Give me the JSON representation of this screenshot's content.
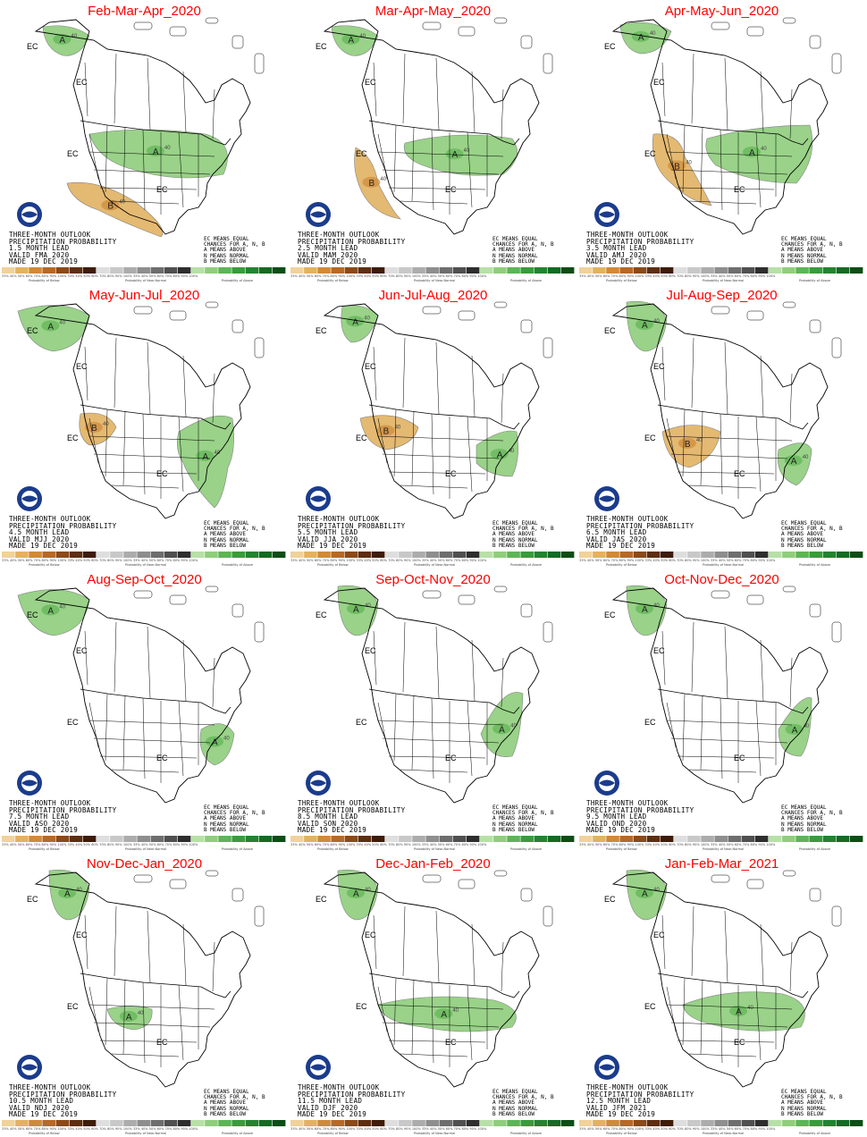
{
  "panels": [
    {
      "title": "Feb-Mar-Apr_2020",
      "lead": "1.5 MONTH LEAD",
      "valid": "VALID FMA 2020"
    },
    {
      "title": "Mar-Apr-May_2020",
      "lead": "2.5 MONTH LEAD",
      "valid": "VALID MAM 2020"
    },
    {
      "title": "Apr-May-Jun_2020",
      "lead": "3.5 MONTH LEAD",
      "valid": "VALID AMJ 2020"
    },
    {
      "title": "May-Jun-Jul_2020",
      "lead": "4.5 MONTH LEAD",
      "valid": "VALID MJJ 2020"
    },
    {
      "title": "Jun-Jul-Aug_2020",
      "lead": "5.5 MONTH LEAD",
      "valid": "VALID JJA 2020"
    },
    {
      "title": "Jul-Aug-Sep_2020",
      "lead": "6.5 MONTH LEAD",
      "valid": "VALID JAS 2020"
    },
    {
      "title": "Aug-Sep-Oct_2020",
      "lead": "7.5 MONTH LEAD",
      "valid": "VALID ASO 2020"
    },
    {
      "title": "Sep-Oct-Nov_2020",
      "lead": "8.5 MONTH LEAD",
      "valid": "VALID SON 2020"
    },
    {
      "title": "Oct-Nov-Dec_2020",
      "lead": "9.5 MONTH LEAD",
      "valid": "VALID OND 2020"
    },
    {
      "title": "Nov-Dec-Jan_2020",
      "lead": "10.5 MONTH LEAD",
      "valid": "VALID NDJ 2020"
    },
    {
      "title": "Dec-Jan-Feb_2020",
      "lead": "11.5 MONTH LEAD",
      "valid": "VALID DJF 2020"
    },
    {
      "title": "Jan-Feb-Mar_2021",
      "lead": "12.5 MONTH LEAD",
      "valid": "VALID JFM 2021"
    }
  ],
  "common": {
    "outlook_line1": "THREE-MONTH OUTLOOK",
    "outlook_line2": "PRECIPITATION PROBABILITY",
    "made": "MADE 19 DEC 2019",
    "legend_lines": [
      "EC MEANS EQUAL",
      "CHANCES FOR A, N, B",
      "A MEANS ABOVE",
      "N MEANS NORMAL",
      "B MEANS BELOW"
    ],
    "colorbar_ticks": [
      "33%",
      "40%",
      "50%",
      "60%",
      "70%",
      "80%",
      "90%",
      "100%"
    ],
    "colorbar_groups": [
      "Probability of Below",
      "Probability of Near-Normal",
      "Probability of Above"
    ],
    "map_labels": {
      "ec": "EC",
      "above": "A",
      "below": "B",
      "p33": "33",
      "p40": "40"
    }
  },
  "colors": {
    "below": [
      "#f0d29a",
      "#e2b262",
      "#cf8a3a",
      "#b36a2a",
      "#8a4a1a",
      "#5e2e10",
      "#3e1c08"
    ],
    "normal": [
      "#dedede",
      "#c8c8c8",
      "#acacac",
      "#8e8e8e",
      "#6e6e6e",
      "#505050",
      "#2e2e2e"
    ],
    "above": [
      "#b7e0a6",
      "#8fce7c",
      "#5fb456",
      "#3c9a3c",
      "#25832f",
      "#166a24",
      "#0c4e16"
    ],
    "title": "#ff0000"
  }
}
